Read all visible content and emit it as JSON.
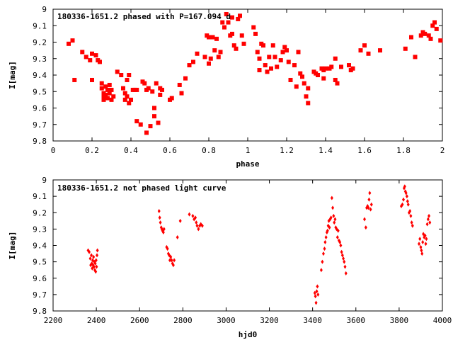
{
  "chart_data": [
    {
      "type": "scatter",
      "title": "180336-1651.2 phased with P=167.094 d",
      "xlabel": "phase",
      "ylabel": "I[mag]",
      "xlim": [
        0,
        2
      ],
      "ylim": [
        9.8,
        9
      ],
      "y_inverted": true,
      "x_ticks": [
        "0",
        "0.2",
        "0.4",
        "0.6",
        "0.8",
        "1",
        "1.2",
        "1.4",
        "1.6",
        "1.8",
        "2"
      ],
      "y_ticks": [
        "9",
        "9.1",
        "9.2",
        "9.3",
        "9.4",
        "9.5",
        "9.6",
        "9.7",
        "9.8"
      ],
      "grid": false,
      "marker_color": "#ff0000",
      "series": [
        {
          "points": [
            [
              0.08,
              9.21
            ],
            [
              0.1,
              9.19
            ],
            [
              0.11,
              9.43
            ],
            [
              0.15,
              9.26
            ],
            [
              0.17,
              9.29
            ],
            [
              0.19,
              9.31
            ],
            [
              0.2,
              9.27
            ],
            [
              0.2,
              9.43
            ],
            [
              0.22,
              9.28
            ],
            [
              0.23,
              9.31
            ],
            [
              0.24,
              9.32
            ],
            [
              0.25,
              9.45
            ],
            [
              0.25,
              9.48
            ],
            [
              0.26,
              9.51
            ],
            [
              0.26,
              9.53
            ],
            [
              0.26,
              9.55
            ],
            [
              0.27,
              9.47
            ],
            [
              0.27,
              9.52
            ],
            [
              0.28,
              9.49
            ],
            [
              0.28,
              9.54
            ],
            [
              0.29,
              9.46
            ],
            [
              0.29,
              9.51
            ],
            [
              0.3,
              9.49
            ],
            [
              0.3,
              9.55
            ],
            [
              0.31,
              9.53
            ],
            [
              0.33,
              9.38
            ],
            [
              0.35,
              9.4
            ],
            [
              0.36,
              9.48
            ],
            [
              0.37,
              9.51
            ],
            [
              0.37,
              9.55
            ],
            [
              0.38,
              9.43
            ],
            [
              0.38,
              9.53
            ],
            [
              0.39,
              9.4
            ],
            [
              0.39,
              9.57
            ],
            [
              0.4,
              9.55
            ],
            [
              0.41,
              9.49
            ],
            [
              0.42,
              9.49
            ],
            [
              0.43,
              9.49
            ],
            [
              0.43,
              9.68
            ],
            [
              0.45,
              9.7
            ],
            [
              0.46,
              9.44
            ],
            [
              0.47,
              9.45
            ],
            [
              0.48,
              9.49
            ],
            [
              0.48,
              9.75
            ],
            [
              0.49,
              9.48
            ],
            [
              0.5,
              9.71
            ],
            [
              0.51,
              9.5
            ],
            [
              0.52,
              9.6
            ],
            [
              0.52,
              9.65
            ],
            [
              0.53,
              9.45
            ],
            [
              0.54,
              9.69
            ],
            [
              0.55,
              9.52
            ],
            [
              0.55,
              9.48
            ],
            [
              0.56,
              9.49
            ],
            [
              0.6,
              9.55
            ],
            [
              0.61,
              9.54
            ],
            [
              0.65,
              9.46
            ],
            [
              0.66,
              9.51
            ],
            [
              0.68,
              9.42
            ],
            [
              0.7,
              9.34
            ],
            [
              0.72,
              9.32
            ],
            [
              0.74,
              9.27
            ],
            [
              0.78,
              9.29
            ],
            [
              0.79,
              9.16
            ],
            [
              0.8,
              9.33
            ],
            [
              0.8,
              9.17
            ],
            [
              0.81,
              9.3
            ],
            [
              0.82,
              9.17
            ],
            [
              0.83,
              9.25
            ],
            [
              0.84,
              9.18
            ],
            [
              0.85,
              9.29
            ],
            [
              0.86,
              9.26
            ],
            [
              0.87,
              9.08
            ],
            [
              0.88,
              9.11
            ],
            [
              0.89,
              9.03
            ],
            [
              0.9,
              9.08
            ],
            [
              0.91,
              9.16
            ],
            [
              0.92,
              9.15
            ],
            [
              0.92,
              9.05
            ],
            [
              0.93,
              9.22
            ],
            [
              0.94,
              9.24
            ],
            [
              0.95,
              9.06
            ],
            [
              0.96,
              9.04
            ],
            [
              0.97,
              9.16
            ],
            [
              0.98,
              9.21
            ],
            [
              1.03,
              9.11
            ],
            [
              1.04,
              9.15
            ],
            [
              1.05,
              9.26
            ],
            [
              1.06,
              9.3
            ],
            [
              1.06,
              9.37
            ],
            [
              1.07,
              9.21
            ],
            [
              1.08,
              9.22
            ],
            [
              1.09,
              9.34
            ],
            [
              1.1,
              9.38
            ],
            [
              1.11,
              9.29
            ],
            [
              1.12,
              9.36
            ],
            [
              1.13,
              9.22
            ],
            [
              1.14,
              9.29
            ],
            [
              1.15,
              9.35
            ],
            [
              1.17,
              9.31
            ],
            [
              1.18,
              9.26
            ],
            [
              1.19,
              9.23
            ],
            [
              1.2,
              9.25
            ],
            [
              1.21,
              9.32
            ],
            [
              1.22,
              9.43
            ],
            [
              1.24,
              9.34
            ],
            [
              1.25,
              9.47
            ],
            [
              1.26,
              9.26
            ],
            [
              1.27,
              9.39
            ],
            [
              1.28,
              9.41
            ],
            [
              1.29,
              9.45
            ],
            [
              1.3,
              9.53
            ],
            [
              1.31,
              9.57
            ],
            [
              1.31,
              9.48
            ],
            [
              1.34,
              9.38
            ],
            [
              1.35,
              9.39
            ],
            [
              1.36,
              9.4
            ],
            [
              1.38,
              9.36
            ],
            [
              1.39,
              9.42
            ],
            [
              1.39,
              9.37
            ],
            [
              1.4,
              9.36
            ],
            [
              1.42,
              9.36
            ],
            [
              1.43,
              9.35
            ],
            [
              1.45,
              9.3
            ],
            [
              1.45,
              9.43
            ],
            [
              1.46,
              9.45
            ],
            [
              1.48,
              9.35
            ],
            [
              1.52,
              9.34
            ],
            [
              1.53,
              9.37
            ],
            [
              1.54,
              9.36
            ],
            [
              1.58,
              9.25
            ],
            [
              1.6,
              9.22
            ],
            [
              1.62,
              9.27
            ],
            [
              1.68,
              9.25
            ],
            [
              1.81,
              9.24
            ],
            [
              1.84,
              9.17
            ],
            [
              1.86,
              9.29
            ],
            [
              1.89,
              9.16
            ],
            [
              1.9,
              9.14
            ],
            [
              1.91,
              9.15
            ],
            [
              1.93,
              9.16
            ],
            [
              1.94,
              9.18
            ],
            [
              1.95,
              9.1
            ],
            [
              1.96,
              9.08
            ],
            [
              1.97,
              9.12
            ],
            [
              1.99,
              9.19
            ]
          ]
        }
      ]
    },
    {
      "type": "scatter",
      "title": "180336-1651.2 not phased light curve",
      "xlabel": "hjd0",
      "ylabel": "I[mag]",
      "xlim": [
        2200,
        4000
      ],
      "ylim": [
        9.8,
        9
      ],
      "y_inverted": true,
      "x_ticks": [
        "2200",
        "2400",
        "2600",
        "2800",
        "3000",
        "3200",
        "3400",
        "3600",
        "3800",
        "4000"
      ],
      "y_ticks": [
        "9",
        "9.1",
        "9.2",
        "9.3",
        "9.4",
        "9.5",
        "9.6",
        "9.7",
        "9.8"
      ],
      "grid": false,
      "marker_color": "#ff0000",
      "series": [
        {
          "points": [
            [
              2362,
              9.43
            ],
            [
              2367,
              9.44
            ],
            [
              2372,
              9.48
            ],
            [
              2374,
              9.52
            ],
            [
              2377,
              9.46
            ],
            [
              2379,
              9.51
            ],
            [
              2381,
              9.54
            ],
            [
              2383,
              9.49
            ],
            [
              2385,
              9.52
            ],
            [
              2387,
              9.47
            ],
            [
              2389,
              9.53
            ],
            [
              2391,
              9.5
            ],
            [
              2393,
              9.55
            ],
            [
              2395,
              9.51
            ],
            [
              2397,
              9.56
            ],
            [
              2399,
              9.49
            ],
            [
              2401,
              9.53
            ],
            [
              2403,
              9.46
            ],
            [
              2405,
              9.43
            ],
            [
              2690,
              9.19
            ],
            [
              2693,
              9.23
            ],
            [
              2696,
              9.26
            ],
            [
              2700,
              9.29
            ],
            [
              2703,
              9.3
            ],
            [
              2706,
              9.31
            ],
            [
              2710,
              9.32
            ],
            [
              2713,
              9.3
            ],
            [
              2725,
              9.41
            ],
            [
              2729,
              9.42
            ],
            [
              2733,
              9.45
            ],
            [
              2737,
              9.46
            ],
            [
              2740,
              9.49
            ],
            [
              2744,
              9.47
            ],
            [
              2748,
              9.49
            ],
            [
              2752,
              9.51
            ],
            [
              2756,
              9.52
            ],
            [
              2760,
              9.49
            ],
            [
              2775,
              9.35
            ],
            [
              2788,
              9.25
            ],
            [
              2830,
              9.21
            ],
            [
              2846,
              9.22
            ],
            [
              2852,
              9.24
            ],
            [
              2858,
              9.23
            ],
            [
              2862,
              9.26
            ],
            [
              2866,
              9.28
            ],
            [
              2872,
              9.3
            ],
            [
              2878,
              9.28
            ],
            [
              2883,
              9.27
            ],
            [
              2890,
              9.28
            ],
            [
              3410,
              9.69
            ],
            [
              3413,
              9.71
            ],
            [
              3416,
              9.75
            ],
            [
              3419,
              9.68
            ],
            [
              3422,
              9.65
            ],
            [
              3425,
              9.7
            ],
            [
              3440,
              9.55
            ],
            [
              3445,
              9.5
            ],
            [
              3450,
              9.45
            ],
            [
              3455,
              9.42
            ],
            [
              3458,
              9.38
            ],
            [
              3462,
              9.35
            ],
            [
              3466,
              9.32
            ],
            [
              3469,
              9.31
            ],
            [
              3472,
              9.28
            ],
            [
              3475,
              9.25
            ],
            [
              3478,
              9.29
            ],
            [
              3481,
              9.24
            ],
            [
              3485,
              9.23
            ],
            [
              3489,
              9.11
            ],
            [
              3493,
              9.17
            ],
            [
              3497,
              9.22
            ],
            [
              3500,
              9.26
            ],
            [
              3504,
              9.24
            ],
            [
              3507,
              9.29
            ],
            [
              3511,
              9.3
            ],
            [
              3515,
              9.35
            ],
            [
              3518,
              9.31
            ],
            [
              3522,
              9.37
            ],
            [
              3526,
              9.38
            ],
            [
              3530,
              9.4
            ],
            [
              3534,
              9.44
            ],
            [
              3538,
              9.46
            ],
            [
              3542,
              9.48
            ],
            [
              3546,
              9.5
            ],
            [
              3550,
              9.53
            ],
            [
              3554,
              9.57
            ],
            [
              3640,
              9.24
            ],
            [
              3646,
              9.29
            ],
            [
              3650,
              9.17
            ],
            [
              3654,
              9.16
            ],
            [
              3658,
              9.17
            ],
            [
              3661,
              9.12
            ],
            [
              3664,
              9.08
            ],
            [
              3668,
              9.18
            ],
            [
              3672,
              9.15
            ],
            [
              3810,
              9.16
            ],
            [
              3815,
              9.15
            ],
            [
              3820,
              9.12
            ],
            [
              3823,
              9.05
            ],
            [
              3826,
              9.04
            ],
            [
              3829,
              9.07
            ],
            [
              3832,
              9.08
            ],
            [
              3836,
              9.1
            ],
            [
              3839,
              9.13
            ],
            [
              3842,
              9.15
            ],
            [
              3846,
              9.2
            ],
            [
              3850,
              9.19
            ],
            [
              3854,
              9.22
            ],
            [
              3858,
              9.26
            ],
            [
              3862,
              9.28
            ],
            [
              3892,
              9.39
            ],
            [
              3896,
              9.36
            ],
            [
              3900,
              9.41
            ],
            [
              3903,
              9.43
            ],
            [
              3906,
              9.45
            ],
            [
              3909,
              9.38
            ],
            [
              3912,
              9.33
            ],
            [
              3916,
              9.35
            ],
            [
              3920,
              9.34
            ],
            [
              3923,
              9.39
            ],
            [
              3926,
              9.36
            ],
            [
              3930,
              9.27
            ],
            [
              3934,
              9.24
            ],
            [
              3938,
              9.22
            ],
            [
              3942,
              9.26
            ]
          ]
        }
      ]
    }
  ]
}
